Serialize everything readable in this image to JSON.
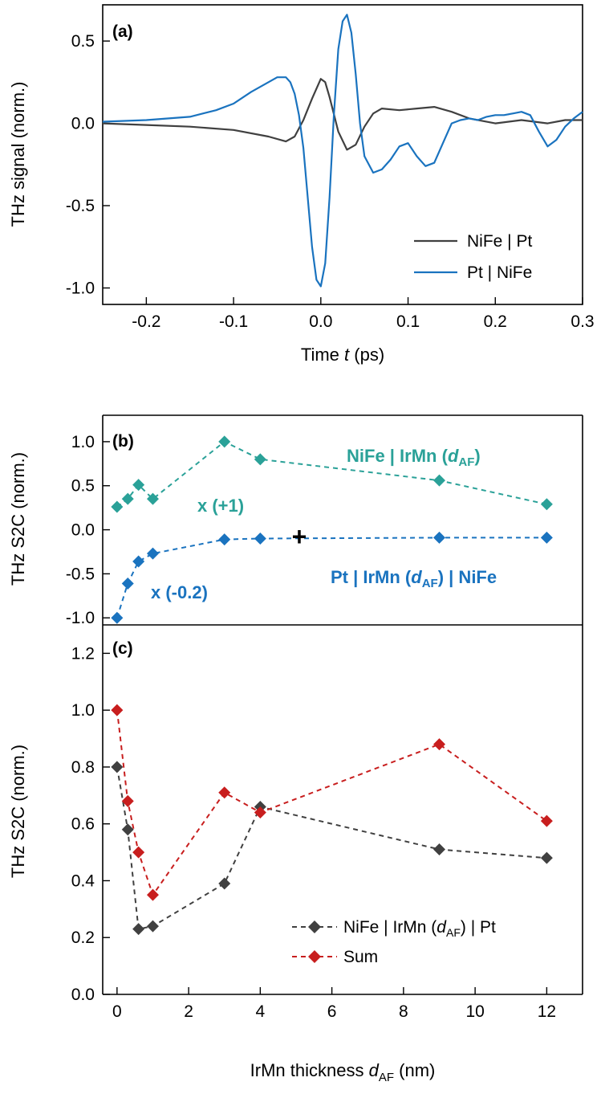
{
  "chart_data": [
    {
      "panel": "(a)",
      "type": "line",
      "xlabel": "Time t (ps)",
      "ylabel": "THz signal (norm.)",
      "xlim": [
        -0.25,
        0.3
      ],
      "ylim": [
        -1.1,
        0.72
      ],
      "xticks": [
        -0.2,
        -0.1,
        0.0,
        0.1,
        0.2,
        0.3
      ],
      "xtick_labels": [
        "-0.2",
        "-0.1",
        "0.0",
        "0.1",
        "0.2",
        "0.3"
      ],
      "yticks": [
        -1.0,
        -0.5,
        0.0,
        0.5
      ],
      "ytick_labels": [
        "-1.0",
        "-0.5",
        "0.0",
        "0.5"
      ],
      "legend_position": "bottom-right",
      "series": [
        {
          "name": "NiFe | Pt",
          "color": "#404040",
          "x": [
            -0.25,
            -0.2,
            -0.15,
            -0.1,
            -0.06,
            -0.04,
            -0.03,
            -0.02,
            -0.01,
            0.0,
            0.005,
            0.01,
            0.02,
            0.03,
            0.04,
            0.05,
            0.06,
            0.07,
            0.09,
            0.11,
            0.13,
            0.15,
            0.17,
            0.2,
            0.23,
            0.26,
            0.28,
            0.3
          ],
          "y": [
            0.0,
            -0.01,
            -0.02,
            -0.04,
            -0.08,
            -0.11,
            -0.08,
            0.02,
            0.15,
            0.27,
            0.25,
            0.16,
            -0.05,
            -0.16,
            -0.13,
            -0.02,
            0.06,
            0.09,
            0.08,
            0.09,
            0.1,
            0.07,
            0.03,
            0.0,
            0.02,
            0.0,
            0.02,
            0.02
          ]
        },
        {
          "name": "Pt | NiFe",
          "color": "#1a73bf",
          "x": [
            -0.25,
            -0.2,
            -0.15,
            -0.12,
            -0.1,
            -0.08,
            -0.06,
            -0.05,
            -0.04,
            -0.035,
            -0.03,
            -0.025,
            -0.02,
            -0.015,
            -0.01,
            -0.005,
            0.0,
            0.005,
            0.01,
            0.015,
            0.02,
            0.025,
            0.03,
            0.035,
            0.04,
            0.045,
            0.05,
            0.06,
            0.07,
            0.08,
            0.09,
            0.1,
            0.11,
            0.12,
            0.13,
            0.14,
            0.15,
            0.16,
            0.17,
            0.18,
            0.19,
            0.2,
            0.21,
            0.22,
            0.23,
            0.24,
            0.25,
            0.26,
            0.27,
            0.28,
            0.29,
            0.3
          ],
          "y": [
            0.01,
            0.02,
            0.04,
            0.08,
            0.12,
            0.19,
            0.25,
            0.28,
            0.28,
            0.25,
            0.18,
            0.05,
            -0.15,
            -0.45,
            -0.75,
            -0.95,
            -0.99,
            -0.85,
            -0.45,
            0.05,
            0.45,
            0.62,
            0.66,
            0.55,
            0.3,
            0.0,
            -0.2,
            -0.3,
            -0.28,
            -0.22,
            -0.14,
            -0.12,
            -0.2,
            -0.26,
            -0.24,
            -0.12,
            0.0,
            0.02,
            0.03,
            0.02,
            0.04,
            0.05,
            0.05,
            0.06,
            0.07,
            0.05,
            -0.05,
            -0.14,
            -0.1,
            -0.02,
            0.03,
            0.07
          ]
        }
      ]
    },
    {
      "panel": "(b)",
      "type": "scatter",
      "xlabel": "",
      "ylabel": "THz S2C (norm.)",
      "xlim": [
        -0.4,
        13
      ],
      "ylim": [
        -1.08,
        1.3
      ],
      "yticks": [
        -1.0,
        -0.5,
        0.0,
        0.5,
        1.0
      ],
      "ytick_labels": [
        "-1.0",
        "-0.5",
        "0.0",
        "0.5",
        "1.0"
      ],
      "series": [
        {
          "name": "NiFe | IrMn (dAF)",
          "color": "#2aa198",
          "x": [
            0,
            0.3,
            0.6,
            1,
            3,
            4,
            9,
            12
          ],
          "y": [
            0.26,
            0.35,
            0.51,
            0.35,
            1.0,
            0.8,
            0.56,
            0.29
          ]
        },
        {
          "name": "Pt | IrMn (dAF) | NiFe",
          "color": "#1a73bf",
          "x": [
            0,
            0.3,
            0.6,
            1,
            3,
            4,
            9,
            12
          ],
          "y": [
            -1.0,
            -0.61,
            -0.36,
            -0.27,
            -0.11,
            -0.1,
            -0.09,
            -0.09
          ]
        }
      ],
      "annotations": {
        "series_a_label_prefix": "NiFe | IrMn (",
        "series_a_label_var": "d",
        "series_a_label_sub": "AF",
        "series_a_label_suffix": ")",
        "series_a_factor": "x (+1)",
        "series_b_label_prefix": "Pt | IrMn (",
        "series_b_label_var": "d",
        "series_b_label_sub": "AF",
        "series_b_label_suffix": ") | NiFe",
        "series_b_factor": "x (-0.2)",
        "plus_sign": "+"
      }
    },
    {
      "panel": "(c)",
      "type": "scatter",
      "xlabel_prefix": "IrMn thickness ",
      "xlabel_var": "d",
      "xlabel_sub": "AF",
      "xlabel_suffix": " (nm)",
      "ylabel": "THz S2C (norm.)",
      "xlim": [
        -0.4,
        13
      ],
      "ylim": [
        0.0,
        1.3
      ],
      "xticks": [
        0,
        2,
        4,
        6,
        8,
        10,
        12
      ],
      "xtick_labels": [
        "0",
        "2",
        "4",
        "6",
        "8",
        "10",
        "12"
      ],
      "yticks": [
        0.0,
        0.2,
        0.4,
        0.6,
        0.8,
        1.0,
        1.2
      ],
      "ytick_labels": [
        "0.0",
        "0.2",
        "0.4",
        "0.6",
        "0.8",
        "1.0",
        "1.2"
      ],
      "legend_position": "bottom-right",
      "series": [
        {
          "name_prefix": "NiFe | IrMn (",
          "name_var": "d",
          "name_sub": "AF",
          "name_suffix": ") | Pt",
          "color": "#404040",
          "x": [
            0,
            0.3,
            0.6,
            1,
            3,
            4,
            9,
            12
          ],
          "y": [
            0.8,
            0.58,
            0.23,
            0.24,
            0.39,
            0.66,
            0.51,
            0.48
          ]
        },
        {
          "name": "Sum",
          "color": "#c81e1e",
          "x": [
            0,
            0.3,
            0.6,
            1,
            3,
            4,
            9,
            12
          ],
          "y": [
            1.0,
            0.68,
            0.5,
            0.35,
            0.71,
            0.64,
            0.88,
            0.61
          ]
        }
      ]
    }
  ]
}
